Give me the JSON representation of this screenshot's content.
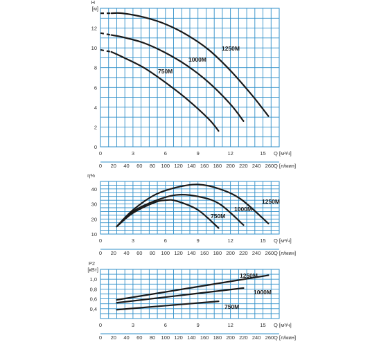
{
  "chart_data": [
    {
      "type": "line",
      "ylabel": "H",
      "yunit": "[м]",
      "ylim": [
        0,
        14
      ],
      "xlim": [
        0,
        16.5
      ],
      "yticks": [
        "0",
        "2",
        "4",
        "6",
        "8",
        "10",
        "12"
      ],
      "x1_label": "Q [м³/ч]",
      "x1_ticks": [
        "0",
        "3",
        "6",
        "9",
        "12",
        "15"
      ],
      "x2_label": "Q [л/мин]",
      "x2_ticks": [
        "0",
        "20",
        "40",
        "60",
        "80",
        "100",
        "120",
        "140",
        "160",
        "180",
        "200",
        "220",
        "240",
        "260"
      ],
      "grid": true,
      "series": [
        {
          "name": "1250M",
          "dashed_to_x": 1.0,
          "points": [
            [
              0,
              13.5
            ],
            [
              1,
              13.5
            ],
            [
              2,
              13.5
            ],
            [
              4,
              13.1
            ],
            [
              6,
              12.4
            ],
            [
              8,
              11.3
            ],
            [
              10,
              9.8
            ],
            [
              12,
              7.7
            ],
            [
              14,
              5.2
            ],
            [
              15.5,
              3.1
            ]
          ]
        },
        {
          "name": "1000M",
          "dashed_to_x": 1.0,
          "points": [
            [
              0,
              11.5
            ],
            [
              1,
              11.3
            ],
            [
              2,
              11.1
            ],
            [
              4,
              10.5
            ],
            [
              6,
              9.5
            ],
            [
              8,
              8.2
            ],
            [
              10,
              6.5
            ],
            [
              12,
              4.3
            ],
            [
              13.2,
              2.6
            ]
          ]
        },
        {
          "name": "750M",
          "dashed_to_x": 1.0,
          "points": [
            [
              0,
              9.8
            ],
            [
              1,
              9.6
            ],
            [
              2,
              9.1
            ],
            [
              4,
              8.0
            ],
            [
              6,
              6.5
            ],
            [
              8,
              4.8
            ],
            [
              10,
              2.8
            ],
            [
              10.9,
              1.6
            ]
          ]
        }
      ]
    },
    {
      "type": "line",
      "ylabel": "η%",
      "ylim": [
        10,
        45
      ],
      "xlim": [
        0,
        16.5
      ],
      "yticks": [
        "10",
        "20",
        "30",
        "40"
      ],
      "x1_label": "Q [м³/ч]",
      "x1_ticks": [
        "0",
        "3",
        "6",
        "9",
        "12",
        "15"
      ],
      "x2_label": "Q [л/мин]",
      "x2_ticks": [
        "0",
        "20",
        "40",
        "60",
        "80",
        "100",
        "120",
        "140",
        "160",
        "180",
        "200",
        "220",
        "240",
        "260"
      ],
      "grid": true,
      "series": [
        {
          "name": "1250M",
          "points": [
            [
              1.5,
              15
            ],
            [
              3,
              26
            ],
            [
              5,
              36
            ],
            [
              7,
              41
            ],
            [
              9,
              43
            ],
            [
              11,
              40
            ],
            [
              13,
              33
            ],
            [
              15.5,
              17
            ]
          ]
        },
        {
          "name": "1000M",
          "points": [
            [
              1.5,
              15
            ],
            [
              3,
              25
            ],
            [
              5,
              32
            ],
            [
              7,
              36
            ],
            [
              9,
              35
            ],
            [
              11,
              30
            ],
            [
              13.2,
              16
            ]
          ]
        },
        {
          "name": "750M",
          "points": [
            [
              1.5,
              15
            ],
            [
              3,
              24
            ],
            [
              5,
              31
            ],
            [
              6,
              32.5
            ],
            [
              7,
              32
            ],
            [
              9,
              26
            ],
            [
              10.9,
              14
            ]
          ]
        }
      ]
    },
    {
      "type": "line",
      "ylabel": "P2",
      "yunit": "[кВт]",
      "ylim": [
        0.2,
        1.2
      ],
      "xlim": [
        0,
        16.5
      ],
      "yticks": [
        "0,4",
        "0,6",
        "0,8",
        "1,0"
      ],
      "x1_label": "Q [м³/ч]",
      "x1_ticks": [
        "0",
        "3",
        "6",
        "9",
        "12",
        "15"
      ],
      "x2_label": "Q [л/мин]",
      "x2_ticks": [
        "0",
        "20",
        "40",
        "60",
        "80",
        "100",
        "120",
        "140",
        "160",
        "180",
        "200",
        "220",
        "240",
        "260"
      ],
      "grid": true,
      "series": [
        {
          "name": "1250M",
          "points": [
            [
              1.5,
              0.58
            ],
            [
              15.5,
              1.08
            ]
          ]
        },
        {
          "name": "1000M",
          "points": [
            [
              1.5,
              0.52
            ],
            [
              13.2,
              0.82
            ]
          ]
        },
        {
          "name": "750M",
          "points": [
            [
              1.5,
              0.38
            ],
            [
              10.9,
              0.55
            ]
          ]
        }
      ]
    }
  ]
}
